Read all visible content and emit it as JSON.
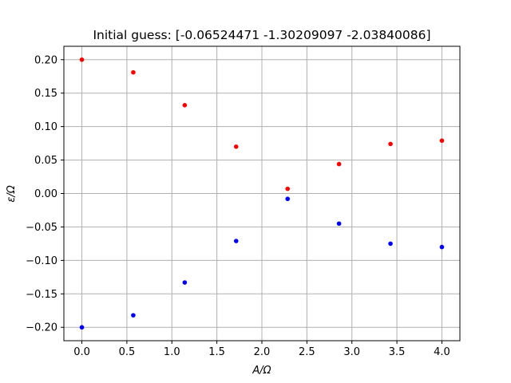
{
  "chart_data": {
    "type": "scatter",
    "title": "Initial guess: [-0.06524471 -1.30209097 -2.03840086]",
    "xlabel": "A/Ω",
    "ylabel": "ε/Ω",
    "xlim": [
      -0.2,
      4.2
    ],
    "ylim": [
      -0.22,
      0.22
    ],
    "x_ticks": [
      "0.0",
      "0.5",
      "1.0",
      "1.5",
      "2.0",
      "2.5",
      "3.0",
      "3.5",
      "4.0"
    ],
    "y_ticks": [
      "−0.20",
      "−0.15",
      "−0.10",
      "−0.05",
      "0.00",
      "0.05",
      "0.10",
      "0.15",
      "0.20"
    ],
    "grid": true,
    "x": [
      0.0,
      0.571,
      1.143,
      1.714,
      2.286,
      2.857,
      3.429,
      4.0
    ],
    "series": [
      {
        "color": "#ff0000",
        "values": [
          0.2,
          0.181,
          0.132,
          0.07,
          0.007,
          0.044,
          0.074,
          0.079
        ]
      },
      {
        "color": "#0000ff",
        "values": [
          -0.2,
          -0.182,
          -0.133,
          -0.071,
          -0.008,
          -0.045,
          -0.075,
          -0.08
        ]
      }
    ]
  }
}
